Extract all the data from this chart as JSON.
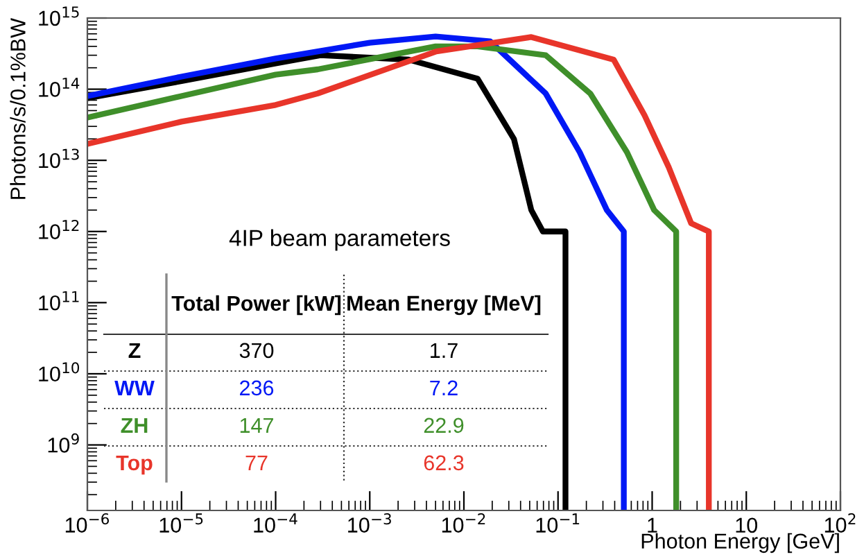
{
  "chart_data": {
    "type": "line",
    "xlabel": "Photon Energy [GeV]",
    "ylabel": "Photons/s/0.1%BW",
    "log": "xy",
    "grid": false,
    "legend": false,
    "xlim": [
      1e-06,
      100
    ],
    "ylim": [
      120000000.0,
      1000000000000000.0
    ],
    "xticks": [
      {
        "value": 1e-06,
        "label": "10$^{−6}$"
      },
      {
        "value": 1e-05,
        "label": "10$^{−5}$"
      },
      {
        "value": 0.0001,
        "label": "10$^{−4}$"
      },
      {
        "value": 0.001,
        "label": "10$^{−3}$"
      },
      {
        "value": 0.01,
        "label": "10$^{−2}$"
      },
      {
        "value": 0.1,
        "label": "10$^{−1}$"
      },
      1,
      10,
      {
        "value": 100,
        "label": "10$^{2}$"
      }
    ],
    "yticks": [
      {
        "value": 1000000000.0,
        "label": "10$^{9}$"
      },
      {
        "value": 10000000000.0,
        "label": "10$^{10}$"
      },
      {
        "value": 100000000000.0,
        "label": "10$^{11}$"
      },
      {
        "value": 1000000000000.0,
        "label": "10$^{12}$"
      },
      {
        "value": 10000000000000.0,
        "label": "10$^{13}$"
      },
      {
        "value": 100000000000000.0,
        "label": "10$^{14}$"
      },
      {
        "value": 1000000000000000.0,
        "label": "10$^{15}$"
      }
    ],
    "series": [
      {
        "name": "Z",
        "color": "#000000",
        "x": [
          1e-06,
          1e-05,
          0.0001,
          0.0003,
          0.0026,
          0.014,
          0.034,
          0.052,
          0.069,
          0.12,
          0.12
        ],
        "values": [
          75000000000000.0,
          130000000000000.0,
          230000000000000.0,
          300000000000000.0,
          260000000000000.0,
          140000000000000.0,
          20000000000000.0,
          2000000000000.0,
          1000000000000.0,
          1000000000000.0,
          120000000.0
        ]
      },
      {
        "name": "WW",
        "color": "#0018f5",
        "x": [
          1e-06,
          1e-05,
          0.0001,
          0.001,
          0.005,
          0.019,
          0.074,
          0.17,
          0.33,
          0.5,
          0.5
        ],
        "values": [
          80000000000000.0,
          150000000000000.0,
          270000000000000.0,
          450000000000000.0,
          550000000000000.0,
          470000000000000.0,
          87000000000000.0,
          13000000000000.0,
          2000000000000.0,
          1000000000000.0,
          120000000.0
        ]
      },
      {
        "name": "ZH",
        "color": "#3f8f2a",
        "x": [
          1e-06,
          1e-05,
          0.0001,
          0.00028,
          0.005,
          0.014,
          0.074,
          0.22,
          0.54,
          1.05,
          1.8,
          1.8
        ],
        "values": [
          40000000000000.0,
          80000000000000.0,
          160000000000000.0,
          190000000000000.0,
          400000000000000.0,
          400000000000000.0,
          300000000000000.0,
          87000000000000.0,
          13000000000000.0,
          2000000000000.0,
          1000000000000.0,
          120000000.0
        ]
      },
      {
        "name": "Top",
        "color": "#e8352a",
        "x": [
          1e-06,
          1e-05,
          0.0001,
          0.00028,
          0.0051,
          0.052,
          0.39,
          0.83,
          1.5,
          2.6,
          4.0,
          4.0
        ],
        "values": [
          17000000000000.0,
          35000000000000.0,
          60000000000000.0,
          87000000000000.0,
          340000000000000.0,
          540000000000000.0,
          260000000000000.0,
          43000000000000.0,
          8000000000000.0,
          1300000000000.0,
          1000000000000.0,
          120000000.0
        ]
      }
    ],
    "annotations": [
      "4IP beam parameters",
      "Total Power [kW]",
      "Mean Energy [MeV]",
      "370",
      "1.7",
      "236",
      "7.2",
      "147",
      "22.9",
      "77",
      "62.3"
    ]
  }
}
